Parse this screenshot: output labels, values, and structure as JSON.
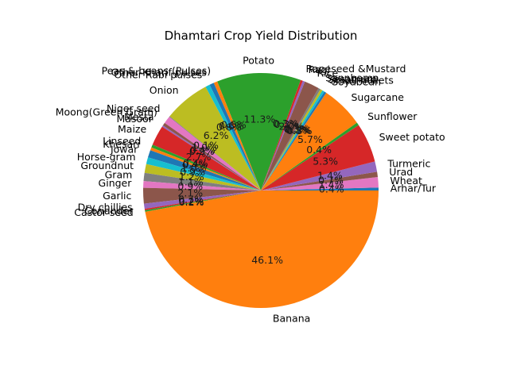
{
  "chart_data": {
    "type": "pie",
    "title": "Dhamtari Crop Yield Distribution",
    "start_angle_deg": 0,
    "direction": "counterclockwise",
    "legend": "none",
    "slices": [
      {
        "label": "Arhar/Tur",
        "value": 0.4,
        "pct_label": "0.4%",
        "color": "#1f77b4"
      },
      {
        "label": "Wheat",
        "value": 1.4,
        "pct_label": "1.4%",
        "color": "#e377c2"
      },
      {
        "label": "Urad",
        "value": 0.7,
        "pct_label": "0.7%",
        "color": "#8c564b"
      },
      {
        "label": "Turmeric",
        "value": 1.4,
        "pct_label": "1.4%",
        "color": "#9467bd"
      },
      {
        "label": "Sweet potato",
        "value": 5.3,
        "pct_label": "5.3%",
        "color": "#d62728"
      },
      {
        "label": "Sunflower",
        "value": 0.4,
        "pct_label": "0.4%",
        "color": "#2ca02c"
      },
      {
        "label": "Sugarcane",
        "value": 5.7,
        "pct_label": "5.7%",
        "color": "#ff7f0e"
      },
      {
        "label": "Soyabean",
        "value": 0.3,
        "pct_label": "0.3%",
        "color": "#1f77b4"
      },
      {
        "label": "Small millets",
        "value": 0.3,
        "pct_label": "0.3%",
        "color": "#17becf"
      },
      {
        "label": "Sesamum",
        "value": 0.3,
        "pct_label": "0.3%",
        "color": "#bcbd22"
      },
      {
        "label": "Sannhamp",
        "value": 0.3,
        "pct_label": "0.3%",
        "color": "#7f7f7f"
      },
      {
        "label": "Rice",
        "value": 2.0,
        "pct_label": "2.0%",
        "color": "#8c564b"
      },
      {
        "label": "Ragi",
        "value": 0.3,
        "pct_label": "0.3%",
        "color": "#9467bd"
      },
      {
        "label": "Rapeseed &Mustard",
        "value": 0.3,
        "pct_label": "0.3%",
        "color": "#d62728"
      },
      {
        "label": "Potato",
        "value": 11.3,
        "pct_label": "11.3%",
        "color": "#2ca02c"
      },
      {
        "label": "Peas & beans (Pulses)",
        "value": 0.5,
        "pct_label": "0.5%",
        "color": "#ff7f0e"
      },
      {
        "label": "Other Kharif pulses",
        "value": 0.6,
        "pct_label": "0.6%",
        "color": "#1f77b4"
      },
      {
        "label": "Other  Rabi pulses",
        "value": 0.6,
        "pct_label": "0.6%",
        "color": "#17becf"
      },
      {
        "label": "Onion",
        "value": 6.2,
        "pct_label": "6.2%",
        "color": "#bcbd22"
      },
      {
        "label": "Niger seed",
        "value": 0.1,
        "pct_label": "0.1%",
        "color": "#7f7f7f"
      },
      {
        "label": "Moong(Green Gram)",
        "value": 1.0,
        "pct_label": "1.0%",
        "color": "#e377c2"
      },
      {
        "label": "Mesta",
        "value": 0.4,
        "pct_label": "0.4%",
        "color": "#8c564b"
      },
      {
        "label": "Masoor",
        "value": 0.2,
        "pct_label": "0.2%",
        "color": "#9467bd"
      },
      {
        "label": "Maize",
        "value": 2.7,
        "pct_label": "2.7%",
        "color": "#d62728"
      },
      {
        "label": "Linseed",
        "value": 0.4,
        "pct_label": "0.4%",
        "color": "#2ca02c"
      },
      {
        "label": "Khesari",
        "value": 0.4,
        "pct_label": "0.4%",
        "color": "#ff7f0e"
      },
      {
        "label": "Jowar",
        "value": 1.0,
        "pct_label": "1.0%",
        "color": "#1f77b4"
      },
      {
        "label": "Horse-gram",
        "value": 0.9,
        "pct_label": "0.9%",
        "color": "#17becf"
      },
      {
        "label": "Groundnut",
        "value": 1.2,
        "pct_label": "1.2%",
        "color": "#bcbd22"
      },
      {
        "label": "Gram",
        "value": 1.1,
        "pct_label": "1.1%",
        "color": "#7f7f7f"
      },
      {
        "label": "Ginger",
        "value": 0.9,
        "pct_label": "0.9%",
        "color": "#e377c2"
      },
      {
        "label": "Garlic",
        "value": 2.1,
        "pct_label": "2.1%",
        "color": "#8c564b"
      },
      {
        "label": "Dry chillies",
        "value": 0.7,
        "pct_label": "0.7%",
        "color": "#9467bd"
      },
      {
        "label": "Coriander",
        "value": 0.2,
        "pct_label": "0.2%",
        "color": "#d62728"
      },
      {
        "label": "Castor seed",
        "value": 0.2,
        "pct_label": "0.2%",
        "color": "#2ca02c"
      },
      {
        "label": "Banana",
        "value": 46.1,
        "pct_label": "46.1%",
        "color": "#ff7f0e"
      }
    ]
  }
}
